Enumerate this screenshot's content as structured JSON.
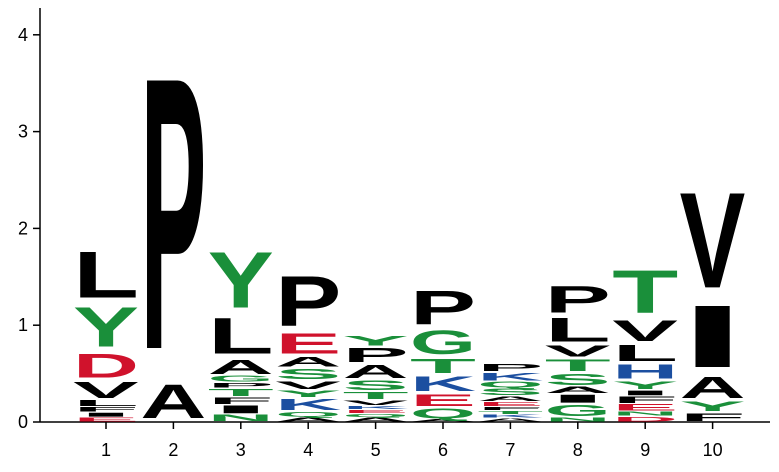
{
  "chart_data": {
    "type": "sequence-logo",
    "title": "",
    "xlabel": "",
    "ylabel": "",
    "ylim": [
      0,
      4
    ],
    "yticks": [
      "0",
      "1",
      "2",
      "3",
      "4"
    ],
    "categories": [
      "1",
      "2",
      "3",
      "4",
      "5",
      "6",
      "7",
      "8",
      "9",
      "10"
    ],
    "colors": {
      "hydrophobic": "#000000",
      "polar": "#1a8f3a",
      "acidic": "#d0122c",
      "basic": "#1c4fa0"
    },
    "positions": [
      {
        "position": "1",
        "stack": [
          {
            "letter": "E",
            "height": 0.05,
            "color": "#d0122c"
          },
          {
            "letter": "I",
            "height": 0.05,
            "color": "#000000"
          },
          {
            "letter": "F",
            "height": 0.06,
            "color": "#000000"
          },
          {
            "letter": "L",
            "height": 0.07,
            "color": "#000000"
          },
          {
            "letter": "V",
            "height": 0.2,
            "color": "#000000"
          },
          {
            "letter": "D",
            "height": 0.3,
            "color": "#d0122c"
          },
          {
            "letter": "Y",
            "height": 0.5,
            "color": "#1a8f3a"
          },
          {
            "letter": "L",
            "height": 0.58,
            "color": "#000000"
          }
        ]
      },
      {
        "position": "2",
        "stack": [
          {
            "letter": "A",
            "height": 0.42,
            "color": "#000000"
          },
          {
            "letter": "P",
            "height": 3.42,
            "color": "#000000"
          }
        ]
      },
      {
        "position": "3",
        "stack": [
          {
            "letter": "N",
            "height": 0.08,
            "color": "#1a8f3a"
          },
          {
            "letter": "I",
            "height": 0.1,
            "color": "#000000"
          },
          {
            "letter": "F",
            "height": 0.08,
            "color": "#000000"
          },
          {
            "letter": "T",
            "height": 0.09,
            "color": "#1a8f3a"
          },
          {
            "letter": "P",
            "height": 0.06,
            "color": "#000000"
          },
          {
            "letter": "G",
            "height": 0.07,
            "color": "#1a8f3a"
          },
          {
            "letter": "A",
            "height": 0.18,
            "color": "#000000"
          },
          {
            "letter": "L",
            "height": 0.45,
            "color": "#000000"
          },
          {
            "letter": "Y",
            "height": 0.7,
            "color": "#1a8f3a"
          }
        ]
      },
      {
        "position": "4",
        "stack": [
          {
            "letter": "A",
            "height": 0.05,
            "color": "#000000"
          },
          {
            "letter": "Q",
            "height": 0.06,
            "color": "#1a8f3a"
          },
          {
            "letter": "K",
            "height": 0.14,
            "color": "#1c4fa0"
          },
          {
            "letter": "Y",
            "height": 0.08,
            "color": "#1a8f3a"
          },
          {
            "letter": "V",
            "height": 0.1,
            "color": "#000000"
          },
          {
            "letter": "S",
            "height": 0.13,
            "color": "#1a8f3a"
          },
          {
            "letter": "A",
            "height": 0.12,
            "color": "#000000"
          },
          {
            "letter": "E",
            "height": 0.25,
            "color": "#d0122c"
          },
          {
            "letter": "P",
            "height": 0.63,
            "color": "#000000"
          }
        ]
      },
      {
        "position": "5",
        "stack": [
          {
            "letter": "A",
            "height": 0.05,
            "color": "#000000"
          },
          {
            "letter": "Q",
            "height": 0.04,
            "color": "#1a8f3a"
          },
          {
            "letter": "E",
            "height": 0.04,
            "color": "#d0122c"
          },
          {
            "letter": "K",
            "height": 0.04,
            "color": "#1c4fa0"
          },
          {
            "letter": "V",
            "height": 0.06,
            "color": "#000000"
          },
          {
            "letter": "T",
            "height": 0.09,
            "color": "#1a8f3a"
          },
          {
            "letter": "S",
            "height": 0.12,
            "color": "#1a8f3a"
          },
          {
            "letter": "A",
            "height": 0.16,
            "color": "#000000"
          },
          {
            "letter": "P",
            "height": 0.18,
            "color": "#000000"
          },
          {
            "letter": "Y",
            "height": 0.12,
            "color": "#1a8f3a"
          }
        ]
      },
      {
        "position": "6",
        "stack": [
          {
            "letter": "A",
            "height": 0.03,
            "color": "#000000"
          },
          {
            "letter": "Q",
            "height": 0.12,
            "color": "#1a8f3a"
          },
          {
            "letter": "E",
            "height": 0.15,
            "color": "#d0122c"
          },
          {
            "letter": "K",
            "height": 0.19,
            "color": "#1c4fa0"
          },
          {
            "letter": "T",
            "height": 0.18,
            "color": "#1a8f3a"
          },
          {
            "letter": "G",
            "height": 0.3,
            "color": "#1a8f3a"
          },
          {
            "letter": "P",
            "height": 0.42,
            "color": "#000000"
          }
        ]
      },
      {
        "position": "7",
        "stack": [
          {
            "letter": "A",
            "height": 0.04,
            "color": "#000000"
          },
          {
            "letter": "K",
            "height": 0.04,
            "color": "#1c4fa0"
          },
          {
            "letter": "T",
            "height": 0.04,
            "color": "#1a8f3a"
          },
          {
            "letter": "F",
            "height": 0.04,
            "color": "#000000"
          },
          {
            "letter": "E",
            "height": 0.05,
            "color": "#d0122c"
          },
          {
            "letter": "A",
            "height": 0.06,
            "color": "#000000"
          },
          {
            "letter": "S",
            "height": 0.08,
            "color": "#1a8f3a"
          },
          {
            "letter": "Q",
            "height": 0.07,
            "color": "#1a8f3a"
          },
          {
            "letter": "K",
            "height": 0.1,
            "color": "#1c4fa0"
          },
          {
            "letter": "P",
            "height": 0.09,
            "color": "#000000"
          }
        ]
      },
      {
        "position": "8",
        "stack": [
          {
            "letter": "N",
            "height": 0.05,
            "color": "#1a8f3a"
          },
          {
            "letter": "G",
            "height": 0.14,
            "color": "#1a8f3a"
          },
          {
            "letter": "I",
            "height": 0.1,
            "color": "#000000"
          },
          {
            "letter": "A",
            "height": 0.08,
            "color": "#000000"
          },
          {
            "letter": "S",
            "height": 0.14,
            "color": "#1a8f3a"
          },
          {
            "letter": "T",
            "height": 0.15,
            "color": "#1a8f3a"
          },
          {
            "letter": "V",
            "height": 0.14,
            "color": "#000000"
          },
          {
            "letter": "L",
            "height": 0.3,
            "color": "#000000"
          },
          {
            "letter": "P",
            "height": 0.33,
            "color": "#000000"
          }
        ]
      },
      {
        "position": "9",
        "stack": [
          {
            "letter": "D",
            "height": 0.06,
            "color": "#d0122c"
          },
          {
            "letter": "N",
            "height": 0.05,
            "color": "#1a8f3a"
          },
          {
            "letter": "E",
            "height": 0.08,
            "color": "#d0122c"
          },
          {
            "letter": "F",
            "height": 0.08,
            "color": "#000000"
          },
          {
            "letter": "I",
            "height": 0.06,
            "color": "#000000"
          },
          {
            "letter": "Y",
            "height": 0.1,
            "color": "#1a8f3a"
          },
          {
            "letter": "H",
            "height": 0.18,
            "color": "#1c4fa0"
          },
          {
            "letter": "L",
            "height": 0.2,
            "color": "#000000"
          },
          {
            "letter": "V",
            "height": 0.26,
            "color": "#000000"
          },
          {
            "letter": "T",
            "height": 0.54,
            "color": "#1a8f3a"
          }
        ]
      },
      {
        "position": "10",
        "stack": [
          {
            "letter": "F",
            "height": 0.1,
            "color": "#000000"
          },
          {
            "letter": "Y",
            "height": 0.12,
            "color": "#1a8f3a"
          },
          {
            "letter": "A",
            "height": 0.27,
            "color": "#000000"
          },
          {
            "letter": "I",
            "height": 0.78,
            "color": "#000000"
          },
          {
            "letter": "V",
            "height": 1.2,
            "color": "#000000"
          }
        ]
      }
    ]
  }
}
